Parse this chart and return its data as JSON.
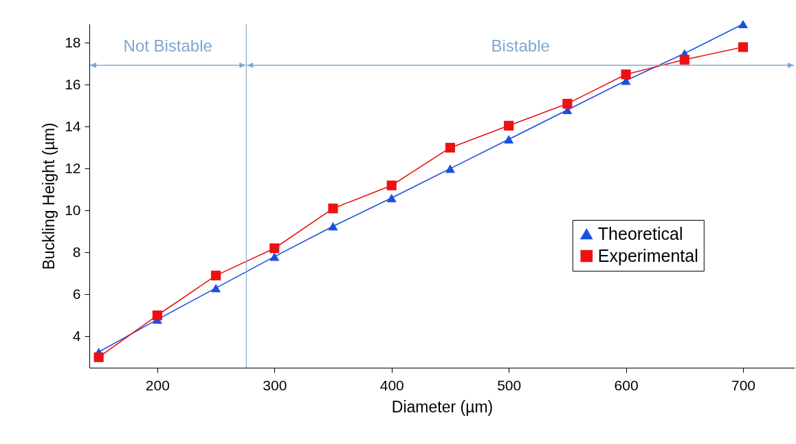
{
  "chart_data": {
    "type": "line",
    "xlabel": "Diameter (µm)",
    "ylabel": "Buckling Height (µm)",
    "x": [
      150,
      200,
      250,
      300,
      350,
      400,
      450,
      500,
      550,
      600,
      650,
      700
    ],
    "series": [
      {
        "name": "Theoretical",
        "color": "#1a4fe0",
        "marker": "triangle",
        "values": [
          3.25,
          4.8,
          6.3,
          7.8,
          9.25,
          10.6,
          12.0,
          13.4,
          14.8,
          16.2,
          17.5,
          18.9
        ]
      },
      {
        "name": "Experimental",
        "color": "#ee1111",
        "marker": "square",
        "values": [
          3.0,
          5.0,
          6.9,
          8.2,
          10.1,
          11.2,
          13.0,
          14.05,
          15.1,
          16.5,
          17.2,
          17.8
        ]
      }
    ],
    "xlim": [
      142,
      744
    ],
    "xticks": [
      200,
      300,
      400,
      500,
      600,
      700
    ],
    "ylim": [
      2.5,
      18.9
    ],
    "yticks": [
      4,
      6,
      8,
      10,
      12,
      14,
      16,
      18
    ],
    "ref_lines": [
      {
        "axis": "x",
        "value": 276,
        "color": "#8fb3d9"
      }
    ],
    "annotations": [
      "Not Bistable",
      "Bistable"
    ],
    "grid": false,
    "legend": "right",
    "line_style": "solid"
  }
}
